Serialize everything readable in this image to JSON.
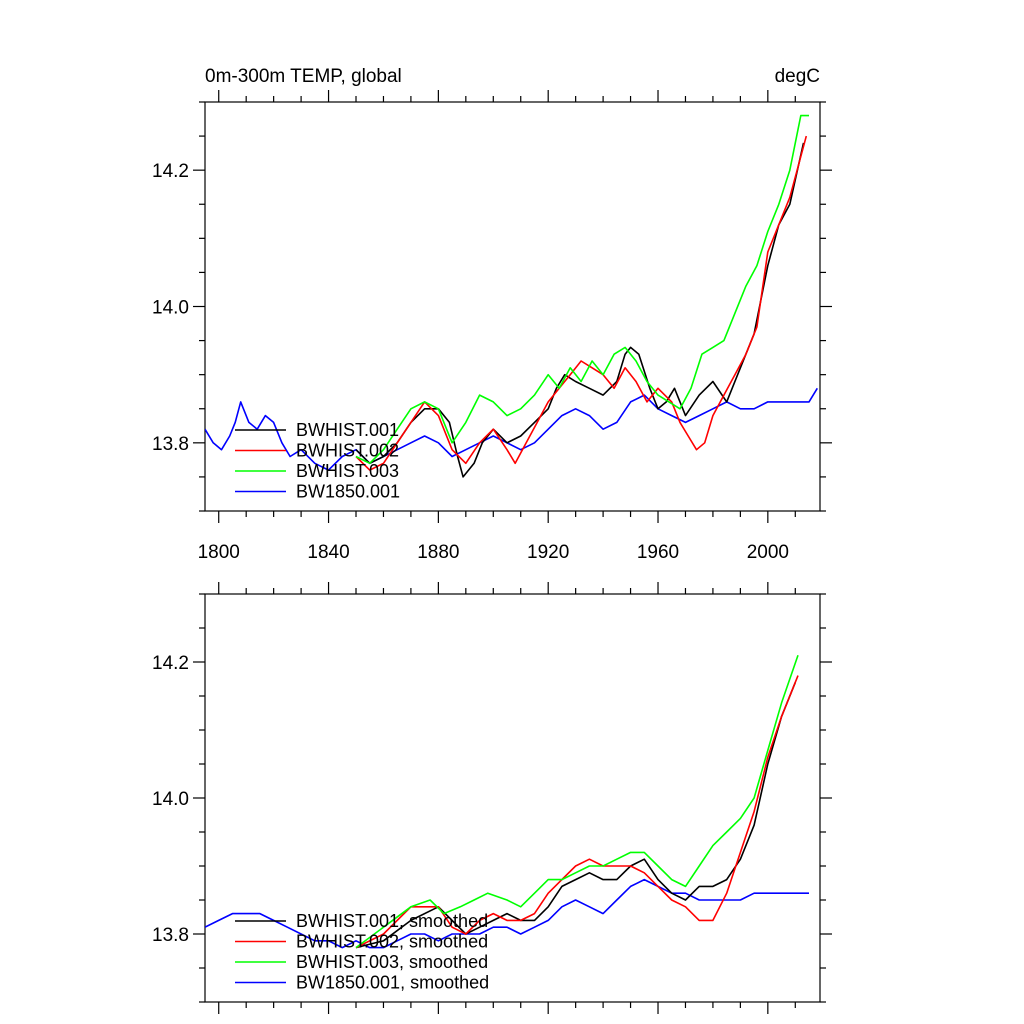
{
  "chart_data": [
    {
      "type": "line",
      "title": "0m-300m TEMP, global",
      "units": "degC",
      "xlim": [
        1795,
        2019
      ],
      "ylim": [
        13.7,
        14.3
      ],
      "xticks": [
        1800,
        1840,
        1880,
        1920,
        1960,
        2000
      ],
      "yticks": [
        13.8,
        14.0,
        14.2
      ],
      "xtick_labels": [
        "1800",
        "1840",
        "1880",
        "1920",
        "1960",
        "2000"
      ],
      "ytick_labels": [
        "13.8",
        "14.0",
        "14.2"
      ],
      "legend": "bottom-left",
      "series": [
        {
          "name": "BWHIST.001",
          "color": "#000000",
          "x": [
            1850,
            1855,
            1860,
            1865,
            1870,
            1875,
            1880,
            1884,
            1887,
            1889,
            1893,
            1896,
            1900,
            1905,
            1910,
            1915,
            1920,
            1923,
            1926,
            1930,
            1935,
            1940,
            1945,
            1948,
            1950,
            1953,
            1957,
            1960,
            1963,
            1966,
            1970,
            1975,
            1980,
            1985,
            1990,
            1995,
            2000,
            2004,
            2008,
            2013
          ],
          "values": [
            13.79,
            13.77,
            13.78,
            13.8,
            13.83,
            13.85,
            13.85,
            13.83,
            13.78,
            13.75,
            13.77,
            13.8,
            13.82,
            13.8,
            13.81,
            13.83,
            13.85,
            13.88,
            13.9,
            13.89,
            13.88,
            13.87,
            13.89,
            13.93,
            13.94,
            13.93,
            13.88,
            13.85,
            13.86,
            13.88,
            13.84,
            13.87,
            13.89,
            13.86,
            13.91,
            13.96,
            14.06,
            14.12,
            14.15,
            14.24
          ]
        },
        {
          "name": "BWHIST.002",
          "color": "#ff0000",
          "x": [
            1850,
            1855,
            1860,
            1865,
            1870,
            1875,
            1880,
            1885,
            1890,
            1895,
            1900,
            1905,
            1908,
            1912,
            1916,
            1920,
            1924,
            1928,
            1932,
            1936,
            1940,
            1944,
            1948,
            1952,
            1956,
            1960,
            1965,
            1968,
            1971,
            1974,
            1977,
            1980,
            1984,
            1988,
            1992,
            1996,
            2000,
            2004,
            2008,
            2014
          ],
          "values": [
            13.78,
            13.76,
            13.77,
            13.8,
            13.83,
            13.86,
            13.84,
            13.79,
            13.77,
            13.8,
            13.82,
            13.79,
            13.77,
            13.8,
            13.83,
            13.86,
            13.88,
            13.9,
            13.92,
            13.91,
            13.9,
            13.88,
            13.91,
            13.89,
            13.86,
            13.88,
            13.86,
            13.83,
            13.81,
            13.79,
            13.8,
            13.84,
            13.87,
            13.9,
            13.93,
            13.97,
            14.08,
            14.12,
            14.16,
            14.25
          ]
        },
        {
          "name": "BWHIST.003",
          "color": "#00ff00",
          "x": [
            1850,
            1855,
            1860,
            1865,
            1870,
            1875,
            1880,
            1885,
            1890,
            1895,
            1900,
            1905,
            1910,
            1915,
            1920,
            1924,
            1928,
            1932,
            1936,
            1940,
            1944,
            1948,
            1952,
            1956,
            1960,
            1964,
            1968,
            1972,
            1976,
            1980,
            1984,
            1988,
            1992,
            1996,
            2000,
            2004,
            2008,
            2012,
            2015
          ],
          "values": [
            13.78,
            13.77,
            13.79,
            13.82,
            13.85,
            13.86,
            13.85,
            13.8,
            13.83,
            13.87,
            13.86,
            13.84,
            13.85,
            13.87,
            13.9,
            13.88,
            13.91,
            13.89,
            13.92,
            13.9,
            13.93,
            13.94,
            13.92,
            13.89,
            13.87,
            13.86,
            13.85,
            13.88,
            13.93,
            13.94,
            13.95,
            13.99,
            14.03,
            14.06,
            14.11,
            14.15,
            14.2,
            14.28,
            14.28
          ]
        },
        {
          "name": "BW1850.001",
          "color": "#0000ff",
          "x": [
            1795,
            1798,
            1801,
            1804,
            1806,
            1808,
            1811,
            1814,
            1817,
            1820,
            1823,
            1826,
            1830,
            1835,
            1840,
            1845,
            1850,
            1855,
            1860,
            1865,
            1870,
            1875,
            1880,
            1885,
            1890,
            1895,
            1900,
            1905,
            1910,
            1915,
            1920,
            1925,
            1930,
            1935,
            1940,
            1945,
            1950,
            1955,
            1960,
            1965,
            1970,
            1975,
            1980,
            1985,
            1990,
            1995,
            2000,
            2005,
            2010,
            2015,
            2018
          ],
          "values": [
            13.82,
            13.8,
            13.79,
            13.81,
            13.83,
            13.86,
            13.83,
            13.82,
            13.84,
            13.83,
            13.8,
            13.78,
            13.79,
            13.77,
            13.76,
            13.78,
            13.79,
            13.77,
            13.78,
            13.79,
            13.8,
            13.81,
            13.8,
            13.78,
            13.79,
            13.8,
            13.81,
            13.8,
            13.79,
            13.8,
            13.82,
            13.84,
            13.85,
            13.84,
            13.82,
            13.83,
            13.86,
            13.87,
            13.85,
            13.84,
            13.83,
            13.84,
            13.85,
            13.86,
            13.85,
            13.85,
            13.86,
            13.86,
            13.86,
            13.86,
            13.88
          ]
        }
      ]
    },
    {
      "type": "line",
      "title": "",
      "xlim": [
        1795,
        2019
      ],
      "ylim": [
        13.7,
        14.3
      ],
      "yticks": [
        13.8,
        14.0,
        14.2
      ],
      "ytick_labels": [
        "13.8",
        "14.0",
        "14.2"
      ],
      "legend": "bottom-left",
      "series": [
        {
          "name": "BWHIST.001, smoothed",
          "color": "#000000",
          "x": [
            1850,
            1860,
            1870,
            1880,
            1885,
            1890,
            1895,
            1900,
            1905,
            1910,
            1915,
            1920,
            1925,
            1930,
            1935,
            1940,
            1945,
            1950,
            1955,
            1960,
            1965,
            1970,
            1975,
            1980,
            1985,
            1990,
            1995,
            2000,
            2005,
            2010
          ],
          "values": [
            13.78,
            13.79,
            13.82,
            13.84,
            13.82,
            13.8,
            13.81,
            13.82,
            13.83,
            13.82,
            13.82,
            13.84,
            13.87,
            13.88,
            13.89,
            13.88,
            13.88,
            13.9,
            13.91,
            13.88,
            13.86,
            13.85,
            13.87,
            13.87,
            13.88,
            13.91,
            13.96,
            14.05,
            14.12,
            14.17
          ]
        },
        {
          "name": "BWHIST.002, smoothed",
          "color": "#ff0000",
          "x": [
            1850,
            1860,
            1870,
            1880,
            1885,
            1890,
            1895,
            1900,
            1905,
            1910,
            1915,
            1920,
            1925,
            1930,
            1935,
            1940,
            1945,
            1950,
            1955,
            1960,
            1965,
            1970,
            1975,
            1980,
            1985,
            1990,
            1995,
            2000,
            2005,
            2011
          ],
          "values": [
            13.78,
            13.8,
            13.84,
            13.84,
            13.81,
            13.8,
            13.82,
            13.83,
            13.82,
            13.82,
            13.83,
            13.86,
            13.88,
            13.9,
            13.91,
            13.9,
            13.9,
            13.9,
            13.89,
            13.87,
            13.85,
            13.84,
            13.82,
            13.82,
            13.86,
            13.92,
            13.98,
            14.06,
            14.12,
            14.18
          ]
        },
        {
          "name": "BWHIST.003, smoothed",
          "color": "#00ff00",
          "x": [
            1850,
            1860,
            1870,
            1877,
            1882,
            1888,
            1893,
            1898,
            1905,
            1910,
            1915,
            1920,
            1925,
            1930,
            1935,
            1940,
            1945,
            1950,
            1955,
            1960,
            1965,
            1970,
            1975,
            1980,
            1985,
            1990,
            1995,
            2000,
            2005,
            2011
          ],
          "values": [
            13.78,
            13.81,
            13.84,
            13.85,
            13.83,
            13.84,
            13.85,
            13.86,
            13.85,
            13.84,
            13.86,
            13.88,
            13.88,
            13.89,
            13.9,
            13.9,
            13.91,
            13.92,
            13.92,
            13.9,
            13.88,
            13.87,
            13.9,
            13.93,
            13.95,
            13.97,
            14.0,
            14.07,
            14.14,
            14.21
          ]
        },
        {
          "name": "BW1850.001, smoothed",
          "color": "#0000ff",
          "x": [
            1795,
            1800,
            1805,
            1810,
            1815,
            1820,
            1825,
            1830,
            1835,
            1840,
            1845,
            1850,
            1855,
            1860,
            1865,
            1870,
            1875,
            1880,
            1885,
            1890,
            1895,
            1900,
            1905,
            1910,
            1915,
            1920,
            1925,
            1930,
            1935,
            1940,
            1945,
            1950,
            1955,
            1960,
            1965,
            1970,
            1975,
            1980,
            1985,
            1990,
            1995,
            2000,
            2005,
            2010,
            2015
          ],
          "values": [
            13.81,
            13.82,
            13.83,
            13.83,
            13.83,
            13.82,
            13.81,
            13.8,
            13.79,
            13.79,
            13.78,
            13.79,
            13.78,
            13.78,
            13.79,
            13.8,
            13.8,
            13.79,
            13.8,
            13.8,
            13.8,
            13.81,
            13.81,
            13.8,
            13.81,
            13.82,
            13.84,
            13.85,
            13.84,
            13.83,
            13.85,
            13.87,
            13.88,
            13.87,
            13.86,
            13.86,
            13.85,
            13.85,
            13.85,
            13.85,
            13.86,
            13.86,
            13.86,
            13.86,
            13.86
          ]
        }
      ]
    }
  ]
}
